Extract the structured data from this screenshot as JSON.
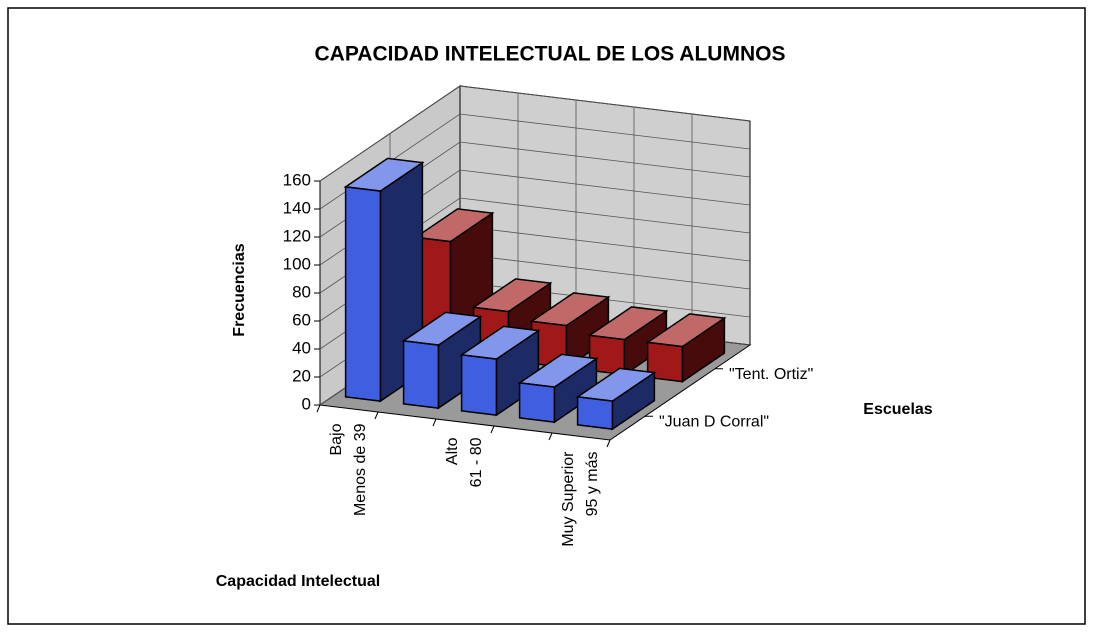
{
  "chart_data": {
    "type": "bar3d",
    "title": "CAPACIDAD INTELECTUAL DE LOS ALUMNOS",
    "x_label": "Capacidad Intelectual",
    "y_label": "Frecuencias",
    "z_label": "Escuelas",
    "categories": [
      [
        "Bajo",
        "Menos de 39"
      ],
      null,
      [
        "Alto",
        "61 - 80"
      ],
      null,
      [
        "Muy Superior",
        "95 y más"
      ]
    ],
    "series": [
      {
        "name": "\"Juan D Corral\"",
        "color": "#3f5fe0",
        "values": [
          150,
          45,
          40,
          25,
          20
        ]
      },
      {
        "name": "\"Tent. Ortiz\"",
        "color": "#a01818",
        "values": [
          80,
          35,
          30,
          25,
          25
        ]
      }
    ],
    "ylim": [
      0,
      160
    ],
    "yticks": [
      0,
      20,
      40,
      60,
      80,
      100,
      120,
      140,
      160
    ],
    "grid": true
  }
}
